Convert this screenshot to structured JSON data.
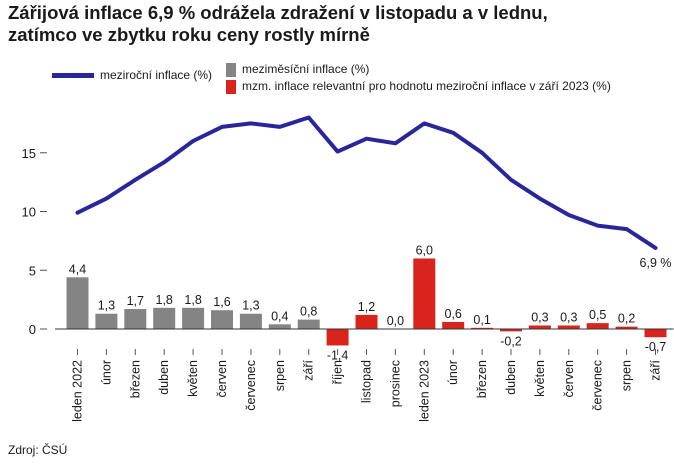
{
  "title_line1": "Zářijová inflace 6,9 % odrážela zdražení v listopadu a v lednu,",
  "title_line2": "zatímco ve zbytku roku ceny rostly mírně",
  "source": "Zdroj: ČSÚ",
  "colors": {
    "line": "#27279b",
    "grey": "#848484",
    "red": "#d8241c"
  },
  "chart_data": {
    "type": "bar",
    "categories": [
      "leden 2022",
      "únor",
      "březen",
      "duben",
      "květen",
      "červen",
      "červenec",
      "srpen",
      "září",
      "říjen",
      "listopad",
      "prosinec",
      "leden 2023",
      "únor",
      "březen",
      "duben",
      "květen",
      "červen",
      "červenec",
      "srpen",
      "září"
    ],
    "series": [
      {
        "name": "meziroční inflace (%)",
        "type": "line",
        "values": [
          9.9,
          11.1,
          12.7,
          14.2,
          16.0,
          17.2,
          17.5,
          17.2,
          18.0,
          15.1,
          16.2,
          15.8,
          17.5,
          16.7,
          15.0,
          12.7,
          11.1,
          9.7,
          8.8,
          8.5,
          6.9
        ],
        "end_label": "6,9 %"
      },
      {
        "name": "meziměsíční inflace (%)",
        "type": "bar",
        "values": [
          4.4,
          1.3,
          1.7,
          1.8,
          1.8,
          1.6,
          1.3,
          0.4,
          0.8,
          null,
          null,
          0.0,
          null,
          null,
          null,
          null,
          null,
          null,
          null,
          null,
          null
        ],
        "labels": [
          "4,4",
          "1,3",
          "1,7",
          "1,8",
          "1,8",
          "1,6",
          "1,3",
          "0,4",
          "0,8",
          "",
          "",
          "0,0",
          "",
          "",
          "",
          "",
          "",
          "",
          "",
          "",
          ""
        ]
      },
      {
        "name": "mzm. inflace relevantní pro hodnotu meziroční inflace v září 2023 (%)",
        "type": "bar",
        "values": [
          null,
          null,
          null,
          null,
          null,
          null,
          null,
          null,
          null,
          -1.4,
          1.2,
          null,
          6.0,
          0.6,
          0.1,
          -0.2,
          0.3,
          0.3,
          0.5,
          0.2,
          -0.7
        ],
        "labels": [
          "",
          "",
          "",
          "",
          "",
          "",
          "",
          "",
          "",
          "-1,4",
          "1,2",
          "",
          "6,0",
          "0,6",
          "0,1",
          "-0,2",
          "0,3",
          "0,3",
          "0,5",
          "0,2",
          "-0,7"
        ]
      }
    ],
    "yticks": [
      "0",
      "5",
      "10",
      "15"
    ],
    "ylim": [
      -2.5,
      19.5
    ],
    "grid": false,
    "legend": "top"
  }
}
